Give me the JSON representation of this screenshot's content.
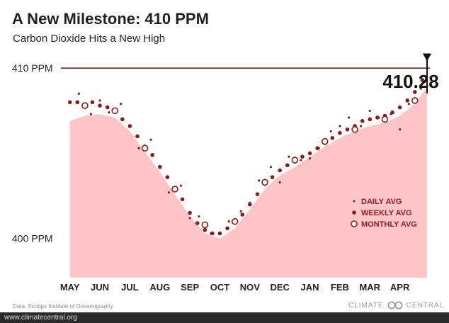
{
  "header": {
    "title": "A New Milestone: 410 PPM",
    "subtitle": "Carbon Dioxide Hits a New High"
  },
  "chart_data": {
    "type": "area",
    "title": "A New Milestone: 410 PPM",
    "subtitle": "Carbon Dioxide Hits a New High",
    "xlabel": "",
    "ylabel": "",
    "categories": [
      "MAY",
      "JUN",
      "JUL",
      "AUG",
      "SEP",
      "OCT",
      "NOV",
      "DEC",
      "JAN",
      "FEB",
      "MAR",
      "APR"
    ],
    "ylim": [
      397.7,
      414.0
    ],
    "y_ticks": [
      {
        "value": 400,
        "label": "400 PPM"
      },
      {
        "value": 410,
        "label": "410 PPM"
      }
    ],
    "reference_line": {
      "value": 410,
      "label": "410 PPM",
      "color": "#8b1a1a"
    },
    "annotation": {
      "label": "410.28",
      "x": 11.85,
      "y": 410.28
    },
    "series": [
      {
        "name": "DAILY AVG",
        "x": [
          0,
          0.3,
          0.7,
          1.0,
          1.3,
          1.7,
          2.0,
          2.3,
          2.7,
          3.0,
          3.3,
          3.7,
          4.0,
          4.3,
          4.7,
          5.0,
          5.3,
          5.7,
          6.0,
          6.3,
          6.7,
          7.0,
          7.3,
          7.7,
          8.0,
          8.3,
          8.7,
          9.0,
          9.3,
          9.7,
          10.0,
          10.3,
          10.7,
          11.0,
          11.3,
          11.7,
          11.9
        ],
        "values": [
          408.0,
          408.5,
          407.3,
          408.1,
          407.4,
          407.9,
          406.6,
          405.3,
          405.8,
          404.2,
          402.7,
          403.1,
          401.2,
          401.3,
          400.3,
          400.3,
          401.0,
          401.6,
          402.1,
          403.4,
          404.2,
          403.3,
          404.8,
          404.6,
          404.7,
          405.3,
          406.3,
          406.6,
          407.1,
          406.6,
          407.5,
          407.1,
          407.3,
          406.4,
          407.9,
          408.8,
          409.5
        ]
      },
      {
        "name": "WEEKLY AVG",
        "x": [
          0,
          0.25,
          0.5,
          0.75,
          1.0,
          1.25,
          1.5,
          1.75,
          2.0,
          2.25,
          2.5,
          2.75,
          3.0,
          3.25,
          3.5,
          3.75,
          4.0,
          4.25,
          4.5,
          4.75,
          5.0,
          5.25,
          5.5,
          5.75,
          6.0,
          6.25,
          6.5,
          6.75,
          7.0,
          7.25,
          7.5,
          7.75,
          8.0,
          8.25,
          8.5,
          8.75,
          9.0,
          9.25,
          9.5,
          9.75,
          10.0,
          10.25,
          10.5,
          10.75,
          11.0,
          11.25,
          11.5,
          11.75
        ],
        "values": [
          408.0,
          408.0,
          407.8,
          408.0,
          407.8,
          407.7,
          407.5,
          407.0,
          406.6,
          406.0,
          405.4,
          404.9,
          404.2,
          403.6,
          402.9,
          402.3,
          401.5,
          400.9,
          400.5,
          400.3,
          400.3,
          400.6,
          401.0,
          401.4,
          402.0,
          402.6,
          403.2,
          403.6,
          404.0,
          404.3,
          404.6,
          404.8,
          405.0,
          405.3,
          405.6,
          405.9,
          406.2,
          406.4,
          406.6,
          406.9,
          407.0,
          407.1,
          407.2,
          407.4,
          407.7,
          408.1,
          408.6,
          409.3
        ]
      },
      {
        "name": "MONTHLY AVG",
        "x": [
          0.5,
          1.5,
          2.5,
          3.5,
          4.5,
          5.5,
          6.5,
          7.5,
          8.5,
          9.5,
          10.5,
          11.5
        ],
        "values": [
          407.8,
          407.5,
          405.3,
          402.9,
          400.8,
          401.0,
          403.3,
          404.6,
          405.7,
          406.4,
          407.0,
          408.1
        ]
      },
      {
        "name": "Baseline fill",
        "x": [
          0,
          0.5,
          1.0,
          1.5,
          2.0,
          2.5,
          3.0,
          3.5,
          4.0,
          4.5,
          5.0,
          5.5,
          6.0,
          6.5,
          7.0,
          7.5,
          8.0,
          8.5,
          9.0,
          9.5,
          10.0,
          10.5,
          11.0,
          11.5,
          11.9
        ],
        "values": [
          406.9,
          407.2,
          407.3,
          407.1,
          406.3,
          405.1,
          403.9,
          402.6,
          401.3,
          400.3,
          400.0,
          400.6,
          401.7,
          402.9,
          403.7,
          404.2,
          404.8,
          405.4,
          405.9,
          406.3,
          406.6,
          406.8,
          407.2,
          407.9,
          408.9
        ]
      }
    ],
    "legend": {
      "placement": "right",
      "items": [
        {
          "label": "DAILY AVG",
          "marker": "small-dot"
        },
        {
          "label": "WEEKLY AVG",
          "marker": "filled-dot"
        },
        {
          "label": "MONTHLY AVG",
          "marker": "open-circle"
        }
      ]
    },
    "colors": {
      "fill": "#ffc4c8",
      "line": "#8b1a1a",
      "dot": "#8b1a1a",
      "tick_text": "#222222"
    },
    "grid": false
  },
  "footer": {
    "source": "Data: Scripps Institute of Oceanography",
    "brand_left": "CLIMATE",
    "brand_right": "CENTRAL",
    "url": "www.climatecentral.org"
  }
}
